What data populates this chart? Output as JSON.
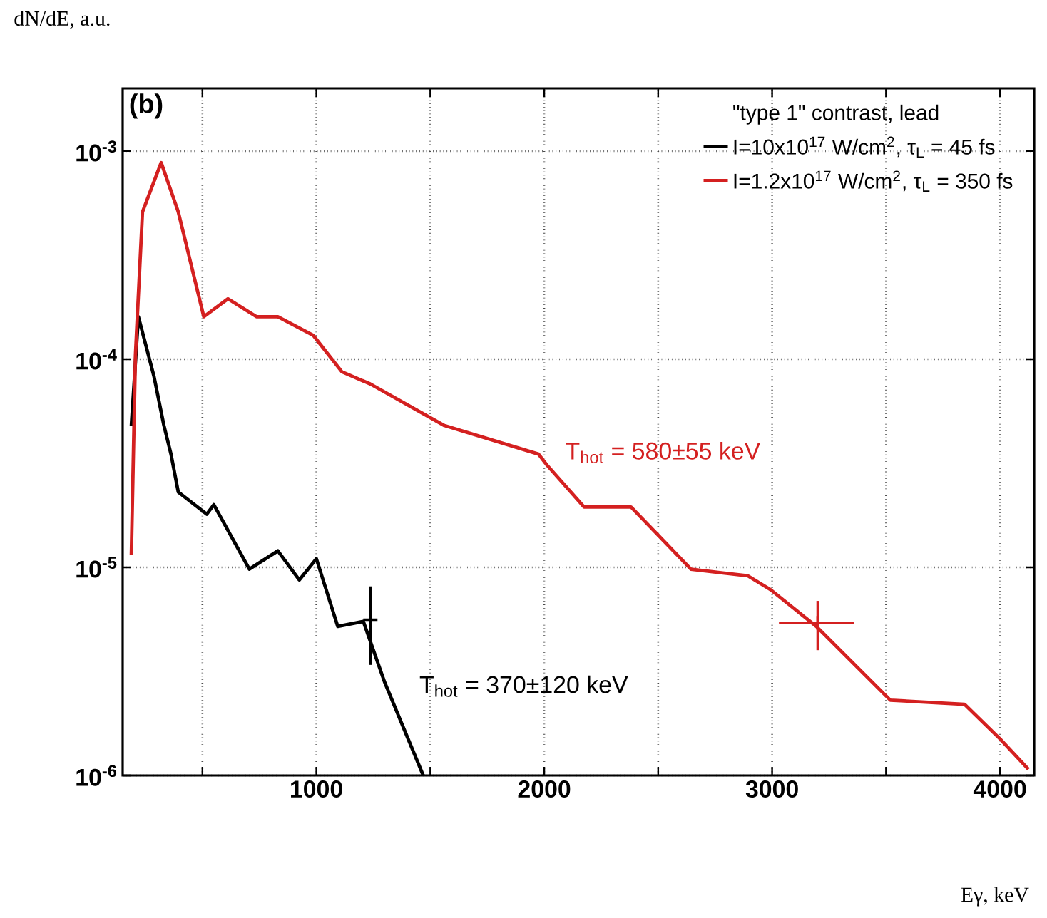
{
  "chart_data": {
    "type": "line",
    "xlabel": "Eγ, keV",
    "ylabel": "dN/dE, a.u.",
    "legend_title": "\"type 1\" contrast, lead",
    "log": "y",
    "grid": true,
    "legend": "top right",
    "line_style": "solid",
    "marker": "none",
    "xlim": [
      150,
      4150
    ],
    "xticks": [
      {
        "value": 500,
        "label": null
      },
      1000,
      {
        "value": 1500,
        "label": null
      },
      2000,
      {
        "value": 2500,
        "label": null
      },
      3000,
      {
        "value": 3500,
        "label": null
      },
      4000
    ],
    "ylim": [
      1e-06,
      0.002
    ],
    "yticks": [
      {
        "value": 1e-06,
        "label": "10$^{-6}$"
      },
      {
        "value": 1e-05,
        "label": "10$^{-5}$"
      },
      {
        "value": 0.0001,
        "label": "10$^{-4}$"
      },
      {
        "value": 0.001,
        "label": "10$^{-3}$"
      }
    ],
    "series": [
      {
        "name": "I=10x10$^{17}$ W/cm$^{2}$, τ$_{L}$ = 45 fs",
        "color": "#000000",
        "x": [
          188,
          219,
          287,
          331,
          362,
          394,
          519,
          550,
          706,
          831,
          925,
          1000,
          1094,
          1206,
          1300,
          1469
        ],
        "values": [
          4.8e-05,
          0.00016,
          8.3e-05,
          4.8e-05,
          3.5e-05,
          2.3e-05,
          1.8e-05,
          2e-05,
          9.8e-06,
          1.2e-05,
          8.7e-06,
          1.1e-05,
          5.2e-06,
          5.5e-06,
          2.8e-06,
          1e-06
        ]
      },
      {
        "name": "I=1.2x10$^{17}$ W/cm$^{2}$, τ$_{L}$ = 350 fs",
        "color": "#d42020",
        "x": [
          188,
          206,
          237,
          319,
          394,
          506,
          612,
          737,
          831,
          987,
          1112,
          1237,
          1562,
          1975,
          2012,
          2175,
          2381,
          2644,
          2894,
          2994,
          3194,
          3519,
          3844,
          4000,
          4125
        ],
        "values": [
          1.15e-05,
          0.000105,
          0.00051,
          0.00088,
          0.00051,
          0.00016,
          0.000195,
          0.00016,
          0.00016,
          0.00013,
          8.7e-05,
          7.6e-05,
          4.8e-05,
          3.5e-05,
          3.1e-05,
          1.95e-05,
          1.95e-05,
          9.8e-06,
          9.1e-06,
          7.8e-06,
          5.2e-06,
          2.3e-06,
          2.2e-06,
          1.5e-06,
          1.07e-06
        ]
      },
      {
        "type": "scatter",
        "marker": "cross",
        "color": "#000000",
        "x": [
          1237
        ],
        "values": [
          5.6e-06
        ],
        "errors": [
          [
            3.4e-06,
            8.1e-06
          ]
        ]
      },
      {
        "type": "scatter",
        "marker": "cross",
        "color": "#d42020",
        "x": [
          3200
        ],
        "values": [
          5.4e-06
        ],
        "errors": [
          [
            4e-06,
            6.9e-06
          ]
        ],
        "xerrors": [
          [
            3030,
            3360
          ]
        ]
      }
    ],
    "annotations": [
      "(b)",
      "T$_{hot}$ = 370±120 keV",
      "T$_{hot}$ = 580±55 keV"
    ]
  }
}
